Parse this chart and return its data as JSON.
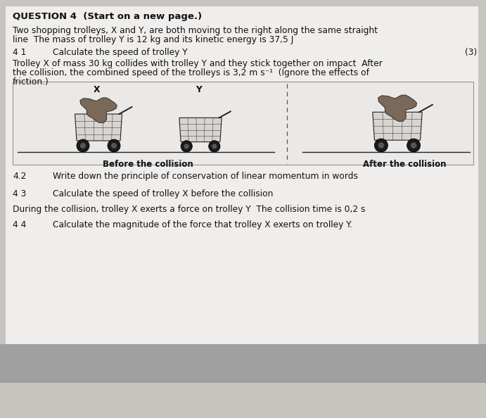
{
  "bg_color": "#c8c4c0",
  "page_bg": "#f0eeec",
  "title": "QUESTION 4  (Start on a new page.)",
  "intro_line1": "Two shopping trolleys, X and Y, are both moving to the right along the same straight",
  "intro_line2": "line  The mass of trolley Y is 12 kg and its kinetic energy is 37,5 J",
  "q41_num": "4 1",
  "q41_text": "Calculate the speed of trolley Y",
  "q41_mark": "(3)",
  "para2_line1": "Trolley X of mass 30 kg collides with trolley Y and they stick together on impact  After",
  "para2_line2": "the collision, the combined speed of the trolleys is 3,2 m s⁻¹  (Ignore the effects of",
  "para2_line3": "friction.)",
  "q42_num": "4.2",
  "q42_text": "Write down the principle of conservation of linear momentum in words",
  "q43_num": "4 3",
  "q43_text": "Calculate the speed of trolley X before the collision",
  "para3": "During the collision, trolley X exerts a force on trolley Y  The collision time is 0,2 s",
  "q44_num": "4 4",
  "q44_text": "Calculate the magnitude of the force that trolley X exerts on trolley Y.",
  "label_before": "Before the collision",
  "label_after": "After the collision",
  "label_x": "X",
  "label_y": "Y",
  "text_color": "#111111",
  "font_size_title": 9.5,
  "font_size_body": 8.8,
  "font_size_label": 8.5
}
